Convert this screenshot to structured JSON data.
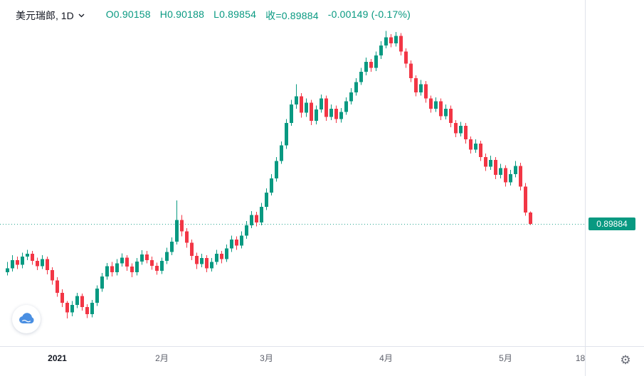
{
  "window_title": "美元瑞郎 1D 图表",
  "legend": {
    "symbol_title": "美元瑞郎, 1D",
    "open": "O0.90158",
    "high": "H0.90188",
    "low": "L0.89854",
    "close": "收=0.89884",
    "change": "-0.00149 (-0.17%)"
  },
  "price_axis": {
    "last_price_label": "0.89884"
  },
  "icons": {
    "symbol_caret": "chevron-down",
    "settings": "gear",
    "logo": "cloud"
  },
  "colors": {
    "up": "#089981",
    "down": "#f23645",
    "legend_text": "#089981",
    "badge_bg": "#089981",
    "badge_text": "#ffffff",
    "axis_line": "#e0e3eb",
    "axis_label": "#5d606b",
    "year_label": "#131722",
    "price_line": "#089981"
  },
  "chart_data": {
    "type": "candlestick",
    "title": "美元瑞郎, 1D",
    "symbol": "美元瑞郎",
    "interval": "1D",
    "last_price": 0.89884,
    "ylim": [
      0.8745,
      0.9475
    ],
    "grid": false,
    "x_ticks": [
      {
        "label": "2021",
        "index": 10,
        "major": true
      },
      {
        "label": "2月",
        "index": 31,
        "major": false
      },
      {
        "label": "3月",
        "index": 52,
        "major": false
      },
      {
        "label": "4月",
        "index": 76,
        "major": false
      },
      {
        "label": "5月",
        "index": 100,
        "major": false
      },
      {
        "label": "18",
        "index": 115,
        "major": false
      }
    ],
    "candles_format": [
      "open",
      "high",
      "low",
      "close"
    ],
    "candles": [
      [
        0.887,
        0.8895,
        0.8862,
        0.888
      ],
      [
        0.888,
        0.8912,
        0.8872,
        0.89
      ],
      [
        0.89,
        0.8908,
        0.8878,
        0.8888
      ],
      [
        0.8888,
        0.8918,
        0.888,
        0.8908
      ],
      [
        0.8908,
        0.8925,
        0.89,
        0.8915
      ],
      [
        0.8915,
        0.8922,
        0.8888,
        0.8898
      ],
      [
        0.8898,
        0.8906,
        0.8875,
        0.8885
      ],
      [
        0.8885,
        0.8912,
        0.8878,
        0.8902
      ],
      [
        0.8902,
        0.8908,
        0.8865,
        0.8875
      ],
      [
        0.8875,
        0.8882,
        0.884,
        0.885
      ],
      [
        0.885,
        0.8858,
        0.881,
        0.882
      ],
      [
        0.882,
        0.8828,
        0.8785,
        0.8795
      ],
      [
        0.8795,
        0.88,
        0.8757,
        0.8772
      ],
      [
        0.8772,
        0.88,
        0.8762,
        0.879
      ],
      [
        0.879,
        0.882,
        0.8782,
        0.8812
      ],
      [
        0.8812,
        0.8818,
        0.8776,
        0.8785
      ],
      [
        0.8785,
        0.8792,
        0.8758,
        0.8768
      ],
      [
        0.8768,
        0.8802,
        0.876,
        0.8795
      ],
      [
        0.8795,
        0.8838,
        0.8788,
        0.883
      ],
      [
        0.883,
        0.8868,
        0.8822,
        0.886
      ],
      [
        0.886,
        0.8893,
        0.8852,
        0.8885
      ],
      [
        0.8885,
        0.8895,
        0.886,
        0.887
      ],
      [
        0.887,
        0.8902,
        0.8862,
        0.8892
      ],
      [
        0.8892,
        0.8916,
        0.8884,
        0.8906
      ],
      [
        0.8906,
        0.8912,
        0.8874,
        0.8884
      ],
      [
        0.8884,
        0.8892,
        0.8858,
        0.887
      ],
      [
        0.887,
        0.8905,
        0.8862,
        0.8896
      ],
      [
        0.8896,
        0.8924,
        0.8888,
        0.8914
      ],
      [
        0.8914,
        0.8922,
        0.8892,
        0.89
      ],
      [
        0.89,
        0.8908,
        0.8876,
        0.8886
      ],
      [
        0.8886,
        0.8894,
        0.8864,
        0.8874
      ],
      [
        0.8874,
        0.8906,
        0.8866,
        0.8898
      ],
      [
        0.8898,
        0.893,
        0.889,
        0.892
      ],
      [
        0.892,
        0.8955,
        0.8912,
        0.8945
      ],
      [
        0.8945,
        0.9046,
        0.8938,
        0.8998
      ],
      [
        0.8998,
        0.901,
        0.8958,
        0.897
      ],
      [
        0.897,
        0.8978,
        0.893,
        0.8942
      ],
      [
        0.8942,
        0.895,
        0.89,
        0.891
      ],
      [
        0.891,
        0.8918,
        0.8878,
        0.889
      ],
      [
        0.889,
        0.8915,
        0.8882,
        0.8905
      ],
      [
        0.8905,
        0.8912,
        0.887,
        0.888
      ],
      [
        0.888,
        0.8905,
        0.8872,
        0.8895
      ],
      [
        0.8895,
        0.8925,
        0.8888,
        0.8915
      ],
      [
        0.8915,
        0.8922,
        0.8892,
        0.8902
      ],
      [
        0.8902,
        0.8938,
        0.8895,
        0.8928
      ],
      [
        0.8928,
        0.896,
        0.892,
        0.895
      ],
      [
        0.895,
        0.8958,
        0.8925,
        0.8935
      ],
      [
        0.8935,
        0.897,
        0.8928,
        0.896
      ],
      [
        0.896,
        0.8995,
        0.8952,
        0.8985
      ],
      [
        0.8985,
        0.902,
        0.8978,
        0.901
      ],
      [
        0.901,
        0.9018,
        0.8982,
        0.8992
      ],
      [
        0.8992,
        0.904,
        0.8985,
        0.903
      ],
      [
        0.903,
        0.9075,
        0.9022,
        0.9065
      ],
      [
        0.9065,
        0.911,
        0.9058,
        0.91
      ],
      [
        0.91,
        0.9152,
        0.9092,
        0.9142
      ],
      [
        0.9142,
        0.919,
        0.9135,
        0.918
      ],
      [
        0.918,
        0.9245,
        0.9172,
        0.9235
      ],
      [
        0.9235,
        0.9292,
        0.9228,
        0.928
      ],
      [
        0.928,
        0.933,
        0.927,
        0.93
      ],
      [
        0.93,
        0.9308,
        0.9248,
        0.926
      ],
      [
        0.926,
        0.9295,
        0.925,
        0.9285
      ],
      [
        0.9285,
        0.9292,
        0.923,
        0.924
      ],
      [
        0.924,
        0.9278,
        0.9232,
        0.9268
      ],
      [
        0.9268,
        0.9305,
        0.926,
        0.9295
      ],
      [
        0.9295,
        0.9302,
        0.924,
        0.925
      ],
      [
        0.925,
        0.928,
        0.9242,
        0.927
      ],
      [
        0.927,
        0.9278,
        0.9235,
        0.9245
      ],
      [
        0.9245,
        0.9272,
        0.9236,
        0.9262
      ],
      [
        0.9262,
        0.9298,
        0.9255,
        0.9288
      ],
      [
        0.9288,
        0.932,
        0.928,
        0.931
      ],
      [
        0.931,
        0.9345,
        0.9302,
        0.9335
      ],
      [
        0.9335,
        0.937,
        0.9328,
        0.936
      ],
      [
        0.936,
        0.9395,
        0.9352,
        0.9385
      ],
      [
        0.9385,
        0.9392,
        0.936,
        0.937
      ],
      [
        0.937,
        0.941,
        0.9362,
        0.94
      ],
      [
        0.94,
        0.9435,
        0.9392,
        0.9425
      ],
      [
        0.9425,
        0.946,
        0.9418,
        0.9445
      ],
      [
        0.9445,
        0.9452,
        0.942,
        0.943
      ],
      [
        0.943,
        0.9458,
        0.9422,
        0.9448
      ],
      [
        0.9448,
        0.9455,
        0.94,
        0.941
      ],
      [
        0.941,
        0.9418,
        0.937,
        0.938
      ],
      [
        0.938,
        0.9388,
        0.9335,
        0.9345
      ],
      [
        0.9345,
        0.9352,
        0.93,
        0.931
      ],
      [
        0.931,
        0.934,
        0.9302,
        0.933
      ],
      [
        0.933,
        0.9338,
        0.9285,
        0.9295
      ],
      [
        0.9295,
        0.9302,
        0.926,
        0.927
      ],
      [
        0.927,
        0.9298,
        0.9262,
        0.9288
      ],
      [
        0.9288,
        0.9295,
        0.9242,
        0.9252
      ],
      [
        0.9252,
        0.928,
        0.9244,
        0.927
      ],
      [
        0.927,
        0.9278,
        0.9225,
        0.9235
      ],
      [
        0.9235,
        0.9242,
        0.92,
        0.921
      ],
      [
        0.921,
        0.9238,
        0.9202,
        0.9228
      ],
      [
        0.9228,
        0.9235,
        0.9185,
        0.9195
      ],
      [
        0.9195,
        0.9202,
        0.916,
        0.917
      ],
      [
        0.917,
        0.9195,
        0.9162,
        0.9185
      ],
      [
        0.9185,
        0.9192,
        0.9142,
        0.9152
      ],
      [
        0.9152,
        0.916,
        0.9118,
        0.9128
      ],
      [
        0.9128,
        0.9155,
        0.912,
        0.9145
      ],
      [
        0.9145,
        0.9152,
        0.9098,
        0.9108
      ],
      [
        0.9108,
        0.9135,
        0.91,
        0.9125
      ],
      [
        0.9125,
        0.9132,
        0.908,
        0.909
      ],
      [
        0.909,
        0.912,
        0.9082,
        0.911
      ],
      [
        0.911,
        0.9142,
        0.9102,
        0.913
      ],
      [
        0.913,
        0.9138,
        0.907,
        0.908
      ],
      [
        0.908,
        0.9088,
        0.9008,
        0.9016
      ],
      [
        0.90158,
        0.90188,
        0.89854,
        0.89884
      ]
    ]
  }
}
